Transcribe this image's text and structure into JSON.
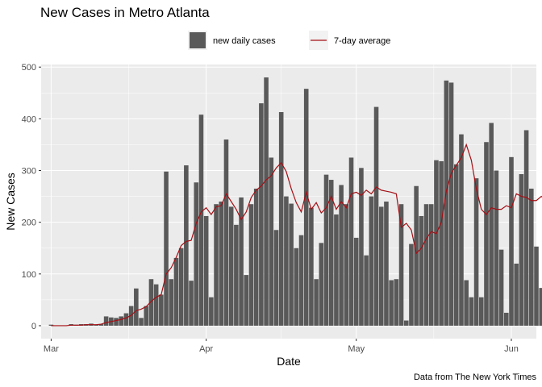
{
  "chart_data": {
    "type": "bar",
    "title": "New Cases in Metro Atlanta",
    "xlabel": "Date",
    "ylabel": "New Cases",
    "caption": "Data from The New York Times",
    "ylim": [
      -25,
      505
    ],
    "y_ticks": [
      0,
      100,
      200,
      300,
      400,
      500
    ],
    "x_axis": {
      "start_date": "2020-03-01",
      "range_days": [
        -2,
        97
      ],
      "ticks": [
        {
          "label": "Mar",
          "day": 0
        },
        {
          "label": "Apr",
          "day": 31
        },
        {
          "label": "May",
          "day": 61
        },
        {
          "label": "Jun",
          "day": 92
        }
      ]
    },
    "grid": true,
    "legend_position": "top",
    "colors": {
      "bars": "#595959",
      "line": "#a50f15",
      "panel": "#ebebeb",
      "grid": "#ffffff"
    },
    "series": [
      {
        "name": "new daily cases",
        "type": "bar",
        "start_date": "2020-03-01",
        "values": [
          2,
          0,
          0,
          0,
          3,
          2,
          3,
          3,
          4,
          2,
          3,
          18,
          16,
          15,
          18,
          24,
          38,
          72,
          15,
          38,
          90,
          80,
          60,
          298,
          90,
          131,
          150,
          310,
          87,
          277,
          408,
          212,
          55,
          235,
          240,
          360,
          230,
          195,
          248,
          98,
          235,
          265,
          430,
          480,
          325,
          185,
          413,
          250,
          236,
          150,
          175,
          458,
          228,
          90,
          160,
          292,
          282,
          215,
          272,
          235,
          325,
          170,
          305,
          136,
          250,
          423,
          230,
          240,
          88,
          90,
          235,
          10,
          158,
          270,
          212,
          235,
          235,
          320,
          318,
          474,
          470,
          312,
          370,
          88,
          55,
          285,
          55,
          355,
          392,
          300,
          147,
          25,
          326,
          120,
          293,
          378,
          265,
          153,
          73,
          275,
          270
        ]
      },
      {
        "name": "7-day average",
        "type": "line",
        "start_date": "2020-03-01",
        "values": [
          0,
          0,
          0,
          0,
          1,
          1,
          1,
          2,
          2,
          2,
          3,
          6,
          8,
          10,
          12,
          15,
          20,
          29,
          32,
          37,
          47,
          55,
          60,
          100,
          112,
          132,
          155,
          163,
          165,
          198,
          220,
          228,
          215,
          230,
          232,
          255,
          240,
          225,
          205,
          220,
          248,
          262,
          270,
          282,
          290,
          305,
          315,
          298,
          265,
          238,
          220,
          258,
          225,
          238,
          218,
          228,
          250,
          225,
          240,
          228,
          255,
          258,
          252,
          262,
          255,
          268,
          262,
          260,
          258,
          255,
          190,
          198,
          185,
          140,
          150,
          168,
          182,
          178,
          200,
          260,
          295,
          310,
          325,
          350,
          320,
          265,
          225,
          215,
          228,
          225,
          225,
          232,
          228,
          255,
          250,
          248,
          242,
          242,
          250,
          242,
          245
        ]
      }
    ]
  }
}
